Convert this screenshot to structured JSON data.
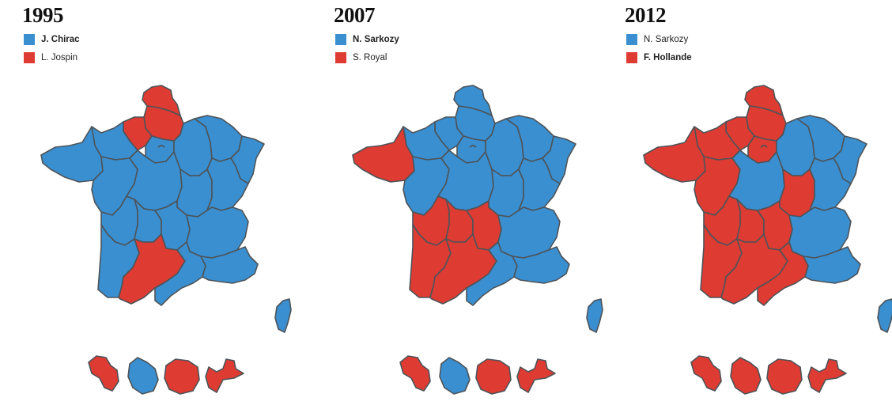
{
  "colors": {
    "blue": "#3a8fd0",
    "red": "#de3b33",
    "border": "#4d5358"
  },
  "panels": [
    {
      "year": "1995",
      "legend": [
        {
          "label": "J. Chirac",
          "color": "blue",
          "winner": true
        },
        {
          "label": "L. Jospin",
          "color": "red",
          "winner": false
        }
      ],
      "regions": {
        "nord": "red",
        "haute-normandie": "red",
        "picardie": "red",
        "idf": "blue",
        "basse-normandie": "blue",
        "bretagne": "blue",
        "pays-de-la-loire": "blue",
        "centre": "blue",
        "champagne": "blue",
        "lorraine": "blue",
        "alsace": "blue",
        "bourgogne": "blue",
        "franche-comte": "blue",
        "poitou": "blue",
        "limousin": "blue",
        "auvergne": "blue",
        "rhone-alpes": "blue",
        "aquitaine": "blue",
        "midi-pyrenees": "red",
        "languedoc": "blue",
        "paca": "blue",
        "corse": "blue"
      },
      "overseas": [
        "red",
        "blue",
        "red",
        "red"
      ]
    },
    {
      "year": "2007",
      "legend": [
        {
          "label": "N. Sarkozy",
          "color": "blue",
          "winner": true
        },
        {
          "label": "S. Royal",
          "color": "red",
          "winner": false
        }
      ],
      "regions": {
        "nord": "blue",
        "haute-normandie": "blue",
        "picardie": "blue",
        "idf": "blue",
        "basse-normandie": "blue",
        "bretagne": "red",
        "pays-de-la-loire": "blue",
        "centre": "blue",
        "champagne": "blue",
        "lorraine": "blue",
        "alsace": "blue",
        "bourgogne": "blue",
        "franche-comte": "blue",
        "poitou": "red",
        "limousin": "red",
        "auvergne": "red",
        "rhone-alpes": "blue",
        "aquitaine": "red",
        "midi-pyrenees": "red",
        "languedoc": "blue",
        "paca": "blue",
        "corse": "blue"
      },
      "overseas": [
        "red",
        "blue",
        "red",
        "red"
      ]
    },
    {
      "year": "2012",
      "legend": [
        {
          "label": "N. Sarkozy",
          "color": "blue",
          "winner": false
        },
        {
          "label": "F. Hollande",
          "color": "red",
          "winner": true
        }
      ],
      "regions": {
        "nord": "red",
        "haute-normandie": "red",
        "picardie": "red",
        "idf": "red",
        "basse-normandie": "red",
        "bretagne": "red",
        "pays-de-la-loire": "red",
        "centre": "blue",
        "champagne": "blue",
        "lorraine": "blue",
        "alsace": "blue",
        "bourgogne": "red",
        "franche-comte": "blue",
        "poitou": "red",
        "limousin": "red",
        "auvergne": "red",
        "rhone-alpes": "blue",
        "aquitaine": "red",
        "midi-pyrenees": "red",
        "languedoc": "red",
        "paca": "blue",
        "corse": "blue"
      },
      "overseas": [
        "red",
        "red",
        "red",
        "red"
      ]
    }
  ]
}
